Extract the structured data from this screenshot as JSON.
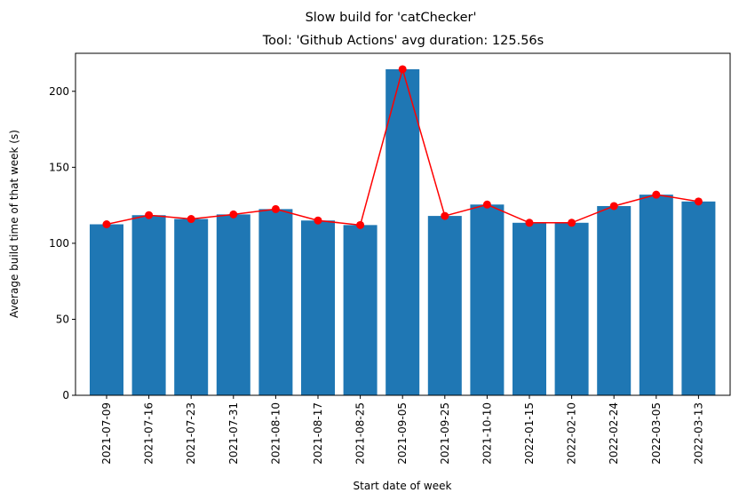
{
  "chart_data": {
    "type": "bar",
    "suptitle": "Slow build for 'catChecker'",
    "title": "Tool: 'Github Actions' avg duration: 125.56s",
    "xlabel": "Start date of week",
    "ylabel": "Average build time of that week (s)",
    "categories": [
      "2021-07-09",
      "2021-07-16",
      "2021-07-23",
      "2021-07-31",
      "2021-08-10",
      "2021-08-17",
      "2021-08-25",
      "2021-09-05",
      "2021-09-25",
      "2021-10-10",
      "2022-01-15",
      "2022-02-10",
      "2022-02-24",
      "2022-03-05",
      "2022-03-13"
    ],
    "values": [
      112.5,
      118.5,
      116,
      119,
      122.5,
      115,
      112,
      214.5,
      118,
      125.5,
      113.5,
      113.5,
      124.5,
      132,
      127.5
    ],
    "ylim": [
      0,
      225
    ],
    "yticks": [
      0,
      50,
      100,
      150,
      200
    ],
    "series": [
      {
        "type": "bar",
        "color": "#1f77b4"
      },
      {
        "type": "line",
        "color": "#ff0000",
        "marker": "circle"
      }
    ],
    "grid": false
  }
}
